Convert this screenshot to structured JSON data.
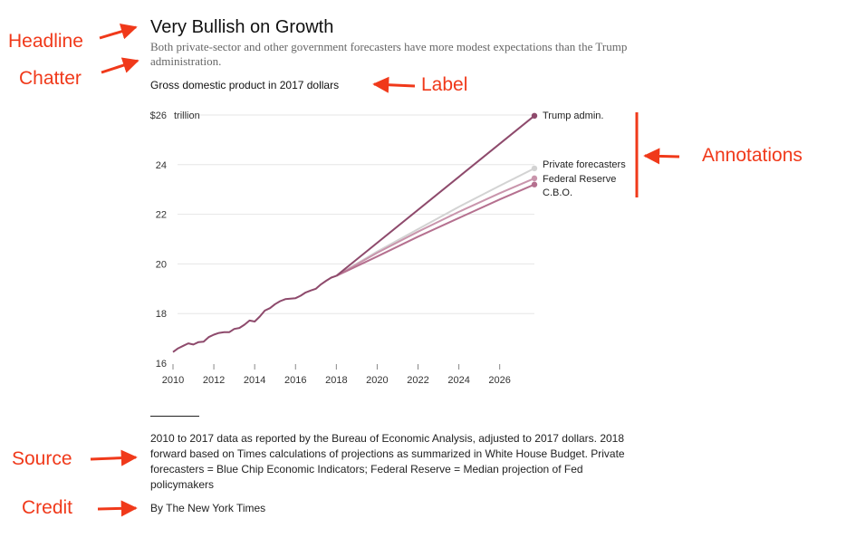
{
  "headline": "Very Bullish on Growth",
  "chatter": "Both private-sector and other government forecasters have more modest expectations than the Trump administration.",
  "label": "Gross domestic product in 2017 dollars",
  "source": "2010 to 2017 data as reported by the Bureau of Economic Analysis, adjusted to 2017 dollars. 2018 forward based on Times calculations of projections as summarized in White House Budget. Private forecasters = Blue Chip Economic Indicators; Federal Reserve = Median projection of Fed policymakers",
  "credit": "By The New York Times",
  "callouts": {
    "headline": "Headline",
    "chatter": "Chatter",
    "label": "Label",
    "annotations": "Annotations",
    "source": "Source",
    "credit": "Credit"
  },
  "colors": {
    "callout": "#f0391a",
    "trump": "#8e4a6c",
    "private": "#d3d3d3",
    "fed": "#c995ac",
    "cbo": "#b5708f",
    "grid": "#e6e6e6"
  },
  "chart_data": {
    "type": "line",
    "xlim": [
      2010,
      2027.7
    ],
    "ylim": [
      16,
      26
    ],
    "x_ticks": [
      2010,
      2012,
      2014,
      2016,
      2018,
      2020,
      2022,
      2024,
      2026
    ],
    "y_ticks": [
      {
        "value": 26,
        "label": "$26",
        "unit": "trillion"
      },
      {
        "value": 24,
        "label": "24"
      },
      {
        "value": 22,
        "label": "22"
      },
      {
        "value": 20,
        "label": "20"
      },
      {
        "value": 18,
        "label": "18"
      },
      {
        "value": 16,
        "label": "16"
      }
    ],
    "historical": {
      "x": [
        2010.0,
        2010.25,
        2010.5,
        2010.75,
        2011.0,
        2011.25,
        2011.5,
        2011.75,
        2012.0,
        2012.25,
        2012.5,
        2012.75,
        2013.0,
        2013.25,
        2013.5,
        2013.75,
        2014.0,
        2014.25,
        2014.5,
        2014.75,
        2015.0,
        2015.25,
        2015.5,
        2015.75,
        2016.0,
        2016.25,
        2016.5,
        2016.75,
        2017.0,
        2017.25,
        2017.5,
        2017.75,
        2018.0
      ],
      "y": [
        16.45,
        16.6,
        16.7,
        16.8,
        16.75,
        16.85,
        16.87,
        17.05,
        17.15,
        17.22,
        17.25,
        17.25,
        17.38,
        17.42,
        17.55,
        17.72,
        17.68,
        17.88,
        18.12,
        18.22,
        18.38,
        18.5,
        18.58,
        18.6,
        18.62,
        18.72,
        18.85,
        18.93,
        19.0,
        19.18,
        19.32,
        19.45,
        19.52
      ]
    },
    "series": [
      {
        "name": "Trump admin.",
        "x": [
          2018.0,
          2027.7
        ],
        "y": [
          19.52,
          25.97
        ]
      },
      {
        "name": "Private forecasters",
        "x": [
          2018.0,
          2020.0,
          2022.0,
          2024.0,
          2026.0,
          2027.7
        ],
        "y": [
          19.52,
          20.5,
          21.4,
          22.3,
          23.15,
          23.85
        ]
      },
      {
        "name": "Federal Reserve",
        "x": [
          2018.0,
          2020.0,
          2022.0,
          2024.0,
          2026.0,
          2027.7
        ],
        "y": [
          19.52,
          20.45,
          21.3,
          22.1,
          22.85,
          23.45
        ]
      },
      {
        "name": "C.B.O.",
        "x": [
          2018.0,
          2020.0,
          2022.0,
          2024.0,
          2026.0,
          2027.7
        ],
        "y": [
          19.52,
          20.3,
          21.1,
          21.85,
          22.6,
          23.2
        ]
      }
    ]
  }
}
